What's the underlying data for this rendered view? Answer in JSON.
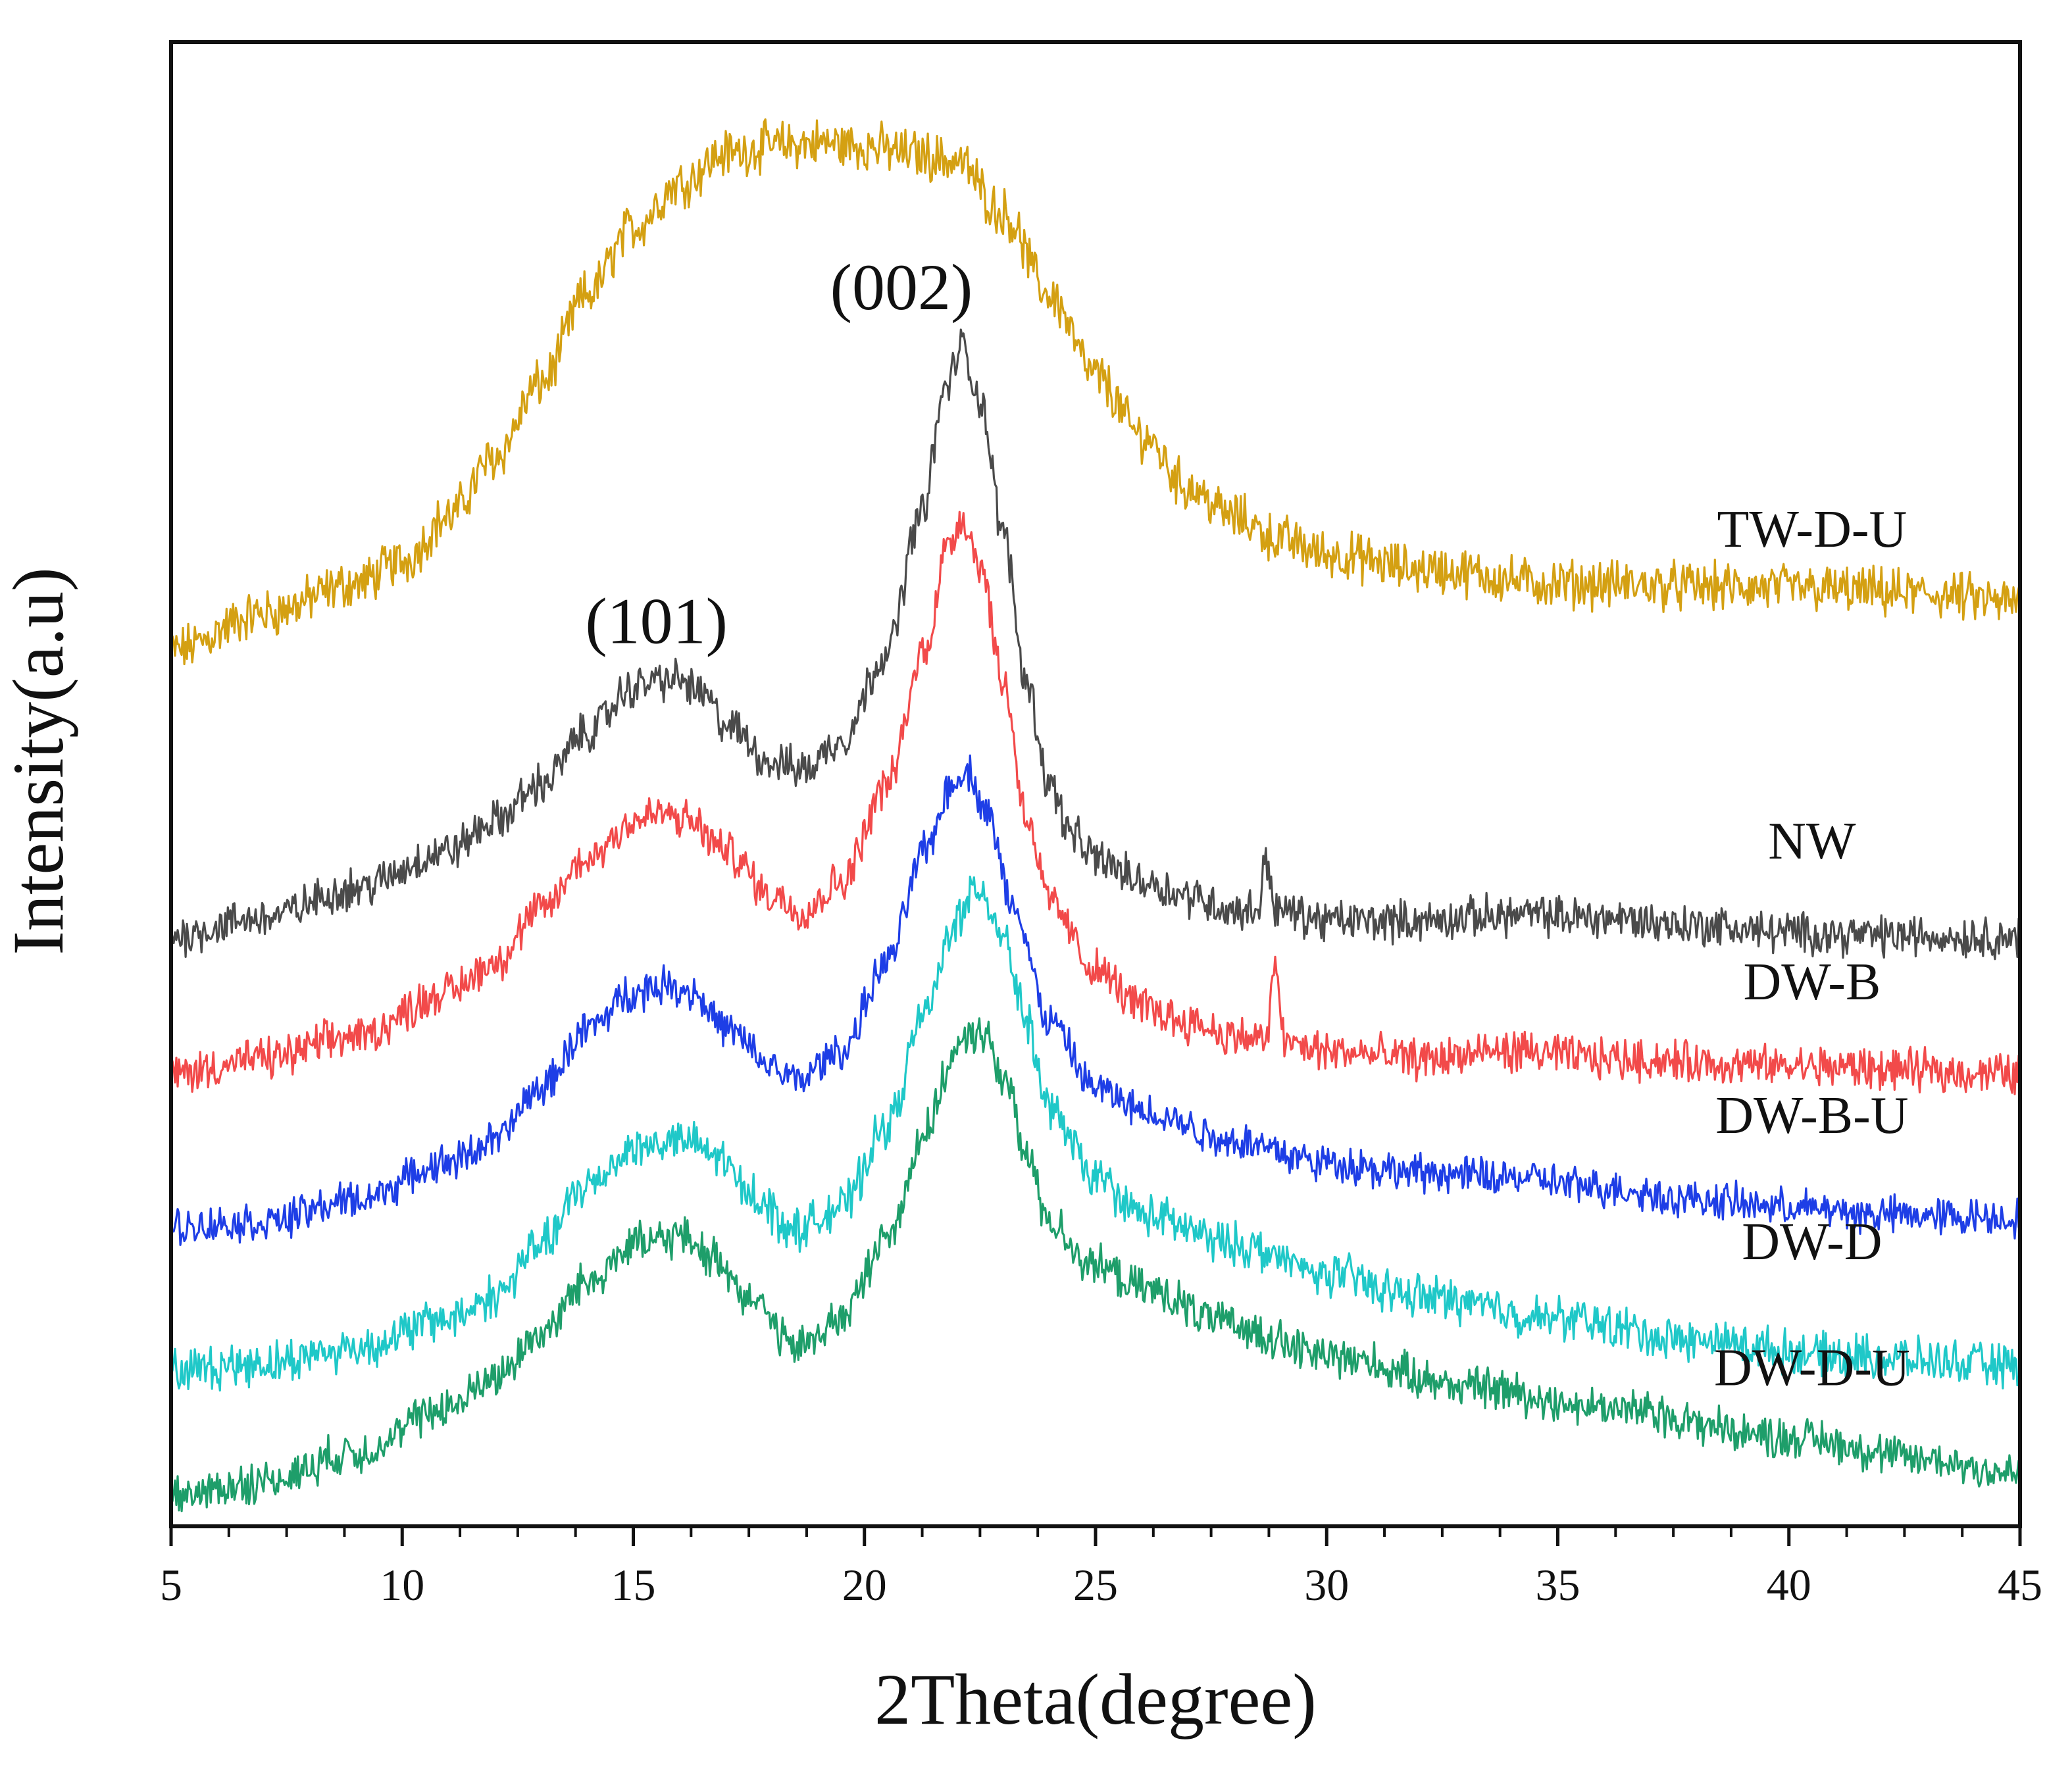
{
  "chart_data": {
    "type": "line",
    "title": "",
    "xlabel": "2Theta(degree)",
    "ylabel": "Intensity(a.u)",
    "xlim": [
      5,
      45
    ],
    "ylim": [
      0,
      100
    ],
    "xticks": [
      5,
      10,
      15,
      20,
      25,
      30,
      35,
      40,
      45
    ],
    "x_minor_step": 1.25,
    "grid": false,
    "legend": "inline labels at right",
    "series": [
      {
        "name": "TW-D-U",
        "color": "#D4A012",
        "noise": 2.6,
        "points": [
          [
            5,
            59.0
          ],
          [
            7,
            61.5
          ],
          [
            9,
            63.5
          ],
          [
            10,
            65.0
          ],
          [
            11,
            68.0
          ],
          [
            12,
            72.0
          ],
          [
            13,
            77.0
          ],
          [
            14,
            83.0
          ],
          [
            15,
            87.5
          ],
          [
            16,
            90.5
          ],
          [
            17,
            92.5
          ],
          [
            18,
            93.0
          ],
          [
            19,
            93.2
          ],
          [
            20,
            93.0
          ],
          [
            21,
            92.5
          ],
          [
            22,
            92.0
          ],
          [
            23,
            88.5
          ],
          [
            24,
            83.0
          ],
          [
            25,
            77.5
          ],
          [
            26,
            73.5
          ],
          [
            27,
            70.0
          ],
          [
            28,
            68.0
          ],
          [
            29,
            66.5
          ],
          [
            30,
            65.5
          ],
          [
            32,
            64.5
          ],
          [
            35,
            63.5
          ],
          [
            40,
            63.2
          ],
          [
            43,
            62.8
          ],
          [
            45,
            62.2
          ]
        ]
      },
      {
        "name": "NW",
        "color": "#4A4A4A",
        "noise": 2.2,
        "points": [
          [
            5,
            39.8
          ],
          [
            7,
            41.0
          ],
          [
            9,
            43.0
          ],
          [
            11,
            45.5
          ],
          [
            12,
            47.5
          ],
          [
            13,
            50.0
          ],
          [
            14,
            53.5
          ],
          [
            15,
            56.5
          ],
          [
            15.5,
            57.0
          ],
          [
            16,
            57.0
          ],
          [
            16.5,
            56.0
          ],
          [
            17,
            54.0
          ],
          [
            18,
            51.5
          ],
          [
            18.7,
            51.0
          ],
          [
            19.5,
            53.0
          ],
          [
            20.5,
            59.0
          ],
          [
            21.2,
            68.0
          ],
          [
            21.8,
            77.0
          ],
          [
            22.1,
            79.5
          ],
          [
            22.5,
            76.0
          ],
          [
            23,
            67.0
          ],
          [
            23.5,
            57.0
          ],
          [
            24,
            50.0
          ],
          [
            24.5,
            46.5
          ],
          [
            25,
            45.0
          ],
          [
            26,
            43.5
          ],
          [
            27,
            42.5
          ],
          [
            28,
            41.5
          ],
          [
            28.5,
            41.5
          ],
          [
            28.7,
            45.0
          ],
          [
            28.9,
            41.5
          ],
          [
            30,
            40.8
          ],
          [
            32,
            40.8
          ],
          [
            34,
            41.2
          ],
          [
            36,
            41.0
          ],
          [
            38,
            40.5
          ],
          [
            40,
            40.0
          ],
          [
            42,
            39.8
          ],
          [
            45,
            39.7
          ]
        ]
      },
      {
        "name": "DW-B",
        "color": "#F24A4A",
        "noise": 2.2,
        "points": [
          [
            5,
            30.5
          ],
          [
            7,
            31.5
          ],
          [
            9,
            33.0
          ],
          [
            11,
            36.0
          ],
          [
            12,
            38.0
          ],
          [
            13,
            41.5
          ],
          [
            14,
            45.0
          ],
          [
            15,
            47.5
          ],
          [
            15.6,
            48.0
          ],
          [
            16.2,
            47.5
          ],
          [
            17,
            45.5
          ],
          [
            18,
            42.5
          ],
          [
            18.7,
            41.5
          ],
          [
            19.5,
            43.5
          ],
          [
            20.5,
            50.0
          ],
          [
            21.3,
            59.0
          ],
          [
            21.8,
            66.0
          ],
          [
            22.1,
            68.0
          ],
          [
            22.5,
            65.0
          ],
          [
            23,
            57.0
          ],
          [
            23.5,
            48.0
          ],
          [
            24,
            42.0
          ],
          [
            25,
            37.5
          ],
          [
            26,
            35.0
          ],
          [
            27,
            34.0
          ],
          [
            28,
            33.0
          ],
          [
            28.7,
            32.8
          ],
          [
            28.9,
            37.8
          ],
          [
            29.1,
            32.5
          ],
          [
            30,
            32.0
          ],
          [
            32,
            31.5
          ],
          [
            34,
            32.0
          ],
          [
            36,
            31.5
          ],
          [
            40,
            31.0
          ],
          [
            45,
            30.5
          ]
        ]
      },
      {
        "name": "DW-B-U",
        "color": "#1E3EE6",
        "noise": 2.0,
        "points": [
          [
            5,
            20.2
          ],
          [
            7,
            20.5
          ],
          [
            9,
            22.0
          ],
          [
            11,
            24.5
          ],
          [
            12,
            26.0
          ],
          [
            13,
            29.5
          ],
          [
            14,
            33.5
          ],
          [
            15,
            36.0
          ],
          [
            15.7,
            36.5
          ],
          [
            16.3,
            36.0
          ],
          [
            17,
            33.5
          ],
          [
            18,
            31.0
          ],
          [
            18.5,
            30.0
          ],
          [
            19.5,
            32.0
          ],
          [
            20.5,
            38.0
          ],
          [
            21.3,
            45.5
          ],
          [
            21.9,
            50.0
          ],
          [
            22.2,
            51.0
          ],
          [
            22.6,
            48.5
          ],
          [
            23.2,
            42.0
          ],
          [
            24,
            34.0
          ],
          [
            25,
            29.5
          ],
          [
            26,
            28.0
          ],
          [
            28,
            26.0
          ],
          [
            30,
            24.5
          ],
          [
            32,
            23.8
          ],
          [
            34,
            23.5
          ],
          [
            36,
            22.8
          ],
          [
            38,
            22.0
          ],
          [
            40,
            21.5
          ],
          [
            42,
            21.0
          ],
          [
            45,
            20.8
          ]
        ]
      },
      {
        "name": "DW-D",
        "color": "#1FC8C8",
        "noise": 2.3,
        "points": [
          [
            5,
            10.5
          ],
          [
            7,
            11.0
          ],
          [
            9,
            12.0
          ],
          [
            11,
            14.0
          ],
          [
            12,
            15.5
          ],
          [
            13,
            19.0
          ],
          [
            14,
            23.0
          ],
          [
            15,
            25.5
          ],
          [
            16,
            26.0
          ],
          [
            16.8,
            25.0
          ],
          [
            17.5,
            22.5
          ],
          [
            18.5,
            20.0
          ],
          [
            19.5,
            21.5
          ],
          [
            20.5,
            27.0
          ],
          [
            21.3,
            34.5
          ],
          [
            22,
            41.0
          ],
          [
            22.5,
            43.0
          ],
          [
            23,
            40.0
          ],
          [
            23.5,
            34.0
          ],
          [
            24,
            28.0
          ],
          [
            25,
            23.5
          ],
          [
            26,
            21.0
          ],
          [
            28,
            19.0
          ],
          [
            30,
            17.0
          ],
          [
            32,
            15.5
          ],
          [
            35,
            14.0
          ],
          [
            38,
            12.5
          ],
          [
            41,
            11.5
          ],
          [
            45,
            10.8
          ]
        ]
      },
      {
        "name": "DW-D-U",
        "color": "#1E9E6A",
        "noise": 2.2,
        "points": [
          [
            5,
            2.0
          ],
          [
            7,
            3.0
          ],
          [
            9,
            5.0
          ],
          [
            11,
            8.0
          ],
          [
            12,
            10.0
          ],
          [
            13,
            13.0
          ],
          [
            14,
            16.5
          ],
          [
            15,
            19.0
          ],
          [
            16,
            19.5
          ],
          [
            16.8,
            18.0
          ],
          [
            17.5,
            15.5
          ],
          [
            18.5,
            12.0
          ],
          [
            19.5,
            14.0
          ],
          [
            20.5,
            19.5
          ],
          [
            21.3,
            26.5
          ],
          [
            22,
            32.0
          ],
          [
            22.5,
            33.5
          ],
          [
            23,
            30.5
          ],
          [
            23.5,
            25.0
          ],
          [
            24,
            20.5
          ],
          [
            25,
            17.5
          ],
          [
            26,
            16.0
          ],
          [
            28,
            13.5
          ],
          [
            30,
            11.5
          ],
          [
            33,
            9.5
          ],
          [
            36,
            8.0
          ],
          [
            40,
            6.0
          ],
          [
            43,
            4.5
          ],
          [
            45,
            3.5
          ]
        ]
      }
    ],
    "series_labels": [
      {
        "text": "TW-D-U",
        "x": 40.5,
        "y": 66.0
      },
      {
        "text": "NW",
        "x": 40.5,
        "y": 45.0
      },
      {
        "text": "DW-B",
        "x": 40.5,
        "y": 35.5
      },
      {
        "text": "DW-B-U",
        "x": 40.5,
        "y": 26.5
      },
      {
        "text": "DW-D",
        "x": 40.5,
        "y": 18.0
      },
      {
        "text": "DW-D-U",
        "x": 40.5,
        "y": 9.5
      }
    ],
    "annotations": [
      {
        "text": "(101)",
        "x": 15.5,
        "y": 59.5
      },
      {
        "text": "(002)",
        "x": 20.8,
        "y": 82.0
      }
    ]
  }
}
